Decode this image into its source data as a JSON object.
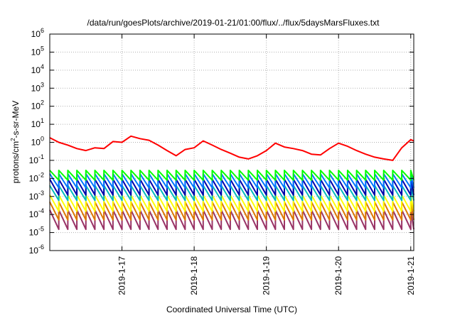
{
  "chart_data": {
    "type": "line",
    "title": "/data/run/goesPlots/archive/2019-01-21/01:00/flux/../flux/5daysMarsFluxes.txt",
    "xlabel": "Coordinated Universal Time (UTC)",
    "ylabel": "protons/cm²-s-sr-MeV",
    "ylabel_main": "protons/cm",
    "ylabel_sup": "2",
    "ylabel_rest": "-s-sr-MeV",
    "ylog": true,
    "ylim": [
      1e-06,
      1000000.0
    ],
    "xlim": [
      "2019-01-16 00:00",
      "2019-01-21 01:00"
    ],
    "grid": true,
    "ytick_exponents": [
      -6,
      -5,
      -4,
      -3,
      -2,
      -1,
      0,
      1,
      2,
      3,
      4,
      5,
      6
    ],
    "xticks": [
      {
        "x": "2019-01-17 00:00",
        "label": "2019-1-17"
      },
      {
        "x": "2019-01-18 00:00",
        "label": "2019-1-18"
      },
      {
        "x": "2019-01-19 00:00",
        "label": "2019-1-19"
      },
      {
        "x": "2019-01-20 00:00",
        "label": "2019-1-20"
      },
      {
        "x": "2019-01-21 00:00",
        "label": "2019-1-21"
      }
    ],
    "series": [
      {
        "color": "#ff0000",
        "x": [
          "2019-01-16 00:00",
          "2019-01-16 03:00",
          "2019-01-16 06:00",
          "2019-01-16 09:00",
          "2019-01-16 12:00",
          "2019-01-16 15:00",
          "2019-01-16 18:00",
          "2019-01-16 21:00",
          "2019-01-17 00:00",
          "2019-01-17 03:00",
          "2019-01-17 06:00",
          "2019-01-17 09:00",
          "2019-01-17 12:00",
          "2019-01-17 15:00",
          "2019-01-17 18:00",
          "2019-01-17 21:00",
          "2019-01-18 00:00",
          "2019-01-18 03:00",
          "2019-01-18 06:00",
          "2019-01-18 09:00",
          "2019-01-18 12:00",
          "2019-01-18 15:00",
          "2019-01-18 18:00",
          "2019-01-18 21:00",
          "2019-01-19 00:00",
          "2019-01-19 03:00",
          "2019-01-19 06:00",
          "2019-01-19 09:00",
          "2019-01-19 12:00",
          "2019-01-19 15:00",
          "2019-01-19 18:00",
          "2019-01-19 21:00",
          "2019-01-20 00:00",
          "2019-01-20 03:00",
          "2019-01-20 06:00",
          "2019-01-20 09:00",
          "2019-01-20 12:00",
          "2019-01-20 15:00",
          "2019-01-20 18:00",
          "2019-01-20 21:00",
          "2019-01-21 00:00",
          "2019-01-21 01:00"
        ],
        "values": [
          1.8,
          1.0,
          0.7,
          0.45,
          0.35,
          0.5,
          0.45,
          1.1,
          1.0,
          2.2,
          1.6,
          1.3,
          0.7,
          0.35,
          0.18,
          0.4,
          0.5,
          1.2,
          0.7,
          0.4,
          0.25,
          0.15,
          0.12,
          0.18,
          0.35,
          0.9,
          0.55,
          0.45,
          0.35,
          0.22,
          0.2,
          0.45,
          0.9,
          0.6,
          0.35,
          0.22,
          0.15,
          0.12,
          0.1,
          0.5,
          1.4,
          1.2
        ]
      },
      {
        "color": "#00ff00",
        "x0": "2019-01-16 00:00",
        "period_hours": 3,
        "low": 0.008,
        "high": 0.028
      },
      {
        "color": "#0077ff",
        "x0": "2019-01-16 00:00",
        "period_hours": 3,
        "low": 0.003,
        "high": 0.018
      },
      {
        "color": "#0000aa",
        "x0": "2019-01-16 00:00",
        "period_hours": 3,
        "low": 0.0012,
        "high": 0.009
      },
      {
        "color": "#00bbbb",
        "x0": "2019-01-16 00:00",
        "period_hours": 3,
        "low": 0.0006,
        "high": 0.004
      },
      {
        "color": "#ffff00",
        "x0": "2019-01-16 00:00",
        "period_hours": 3,
        "low": 0.00015,
        "high": 0.0012
      },
      {
        "color": "#dd7700",
        "x0": "2019-01-16 00:00",
        "period_hours": 3,
        "low": 5e-05,
        "high": 0.0005
      },
      {
        "color": "#993366",
        "x0": "2019-01-16 00:00",
        "period_hours": 3,
        "low": 1.5e-05,
        "high": 0.00018
      }
    ]
  }
}
